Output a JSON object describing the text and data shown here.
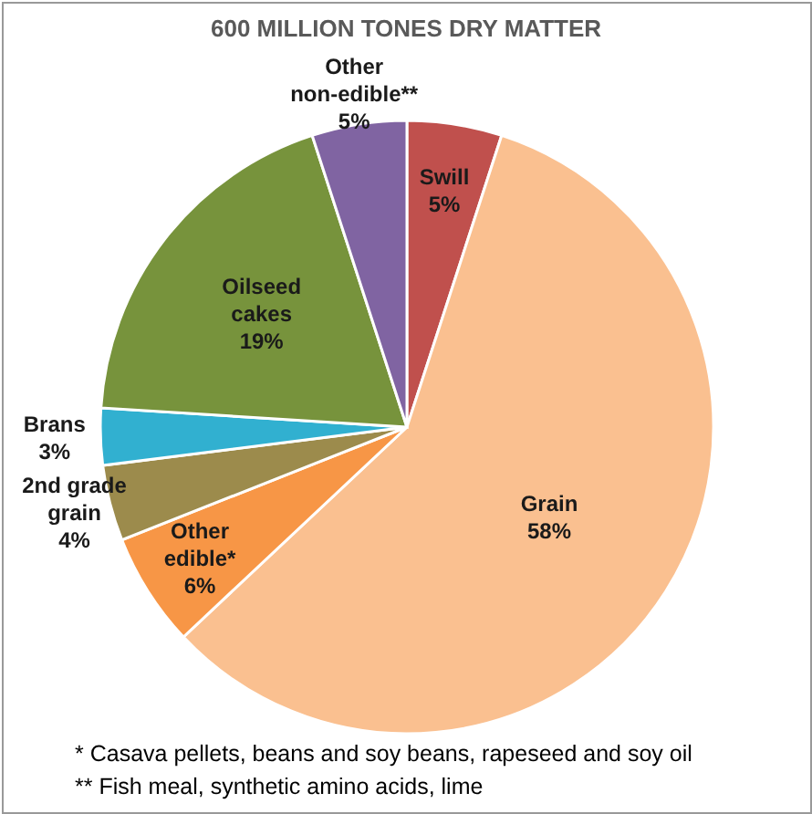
{
  "chart_data": {
    "type": "pie",
    "title": "600 MILLION TONES DRY MATTER",
    "categories": [
      "Swill",
      "Grain",
      "Other edible*",
      "2nd grade grain",
      "Brans",
      "Oilseed cakes",
      "Other non-edible**"
    ],
    "values": [
      5,
      58,
      6,
      4,
      3,
      19,
      5
    ],
    "colors": [
      "#c0504d",
      "#fac090",
      "#f79646",
      "#9c8b4c",
      "#31b0d0",
      "#77933c",
      "#8064a2"
    ],
    "value_labels": [
      "5%",
      "58%",
      "6%",
      "4%",
      "3%",
      "19%",
      "5%"
    ],
    "annotations": [
      "*   Casava pellets, beans and soy beans, rapeseed and soy oil",
      "** Fish meal, synthetic amino acids, lime"
    ]
  }
}
